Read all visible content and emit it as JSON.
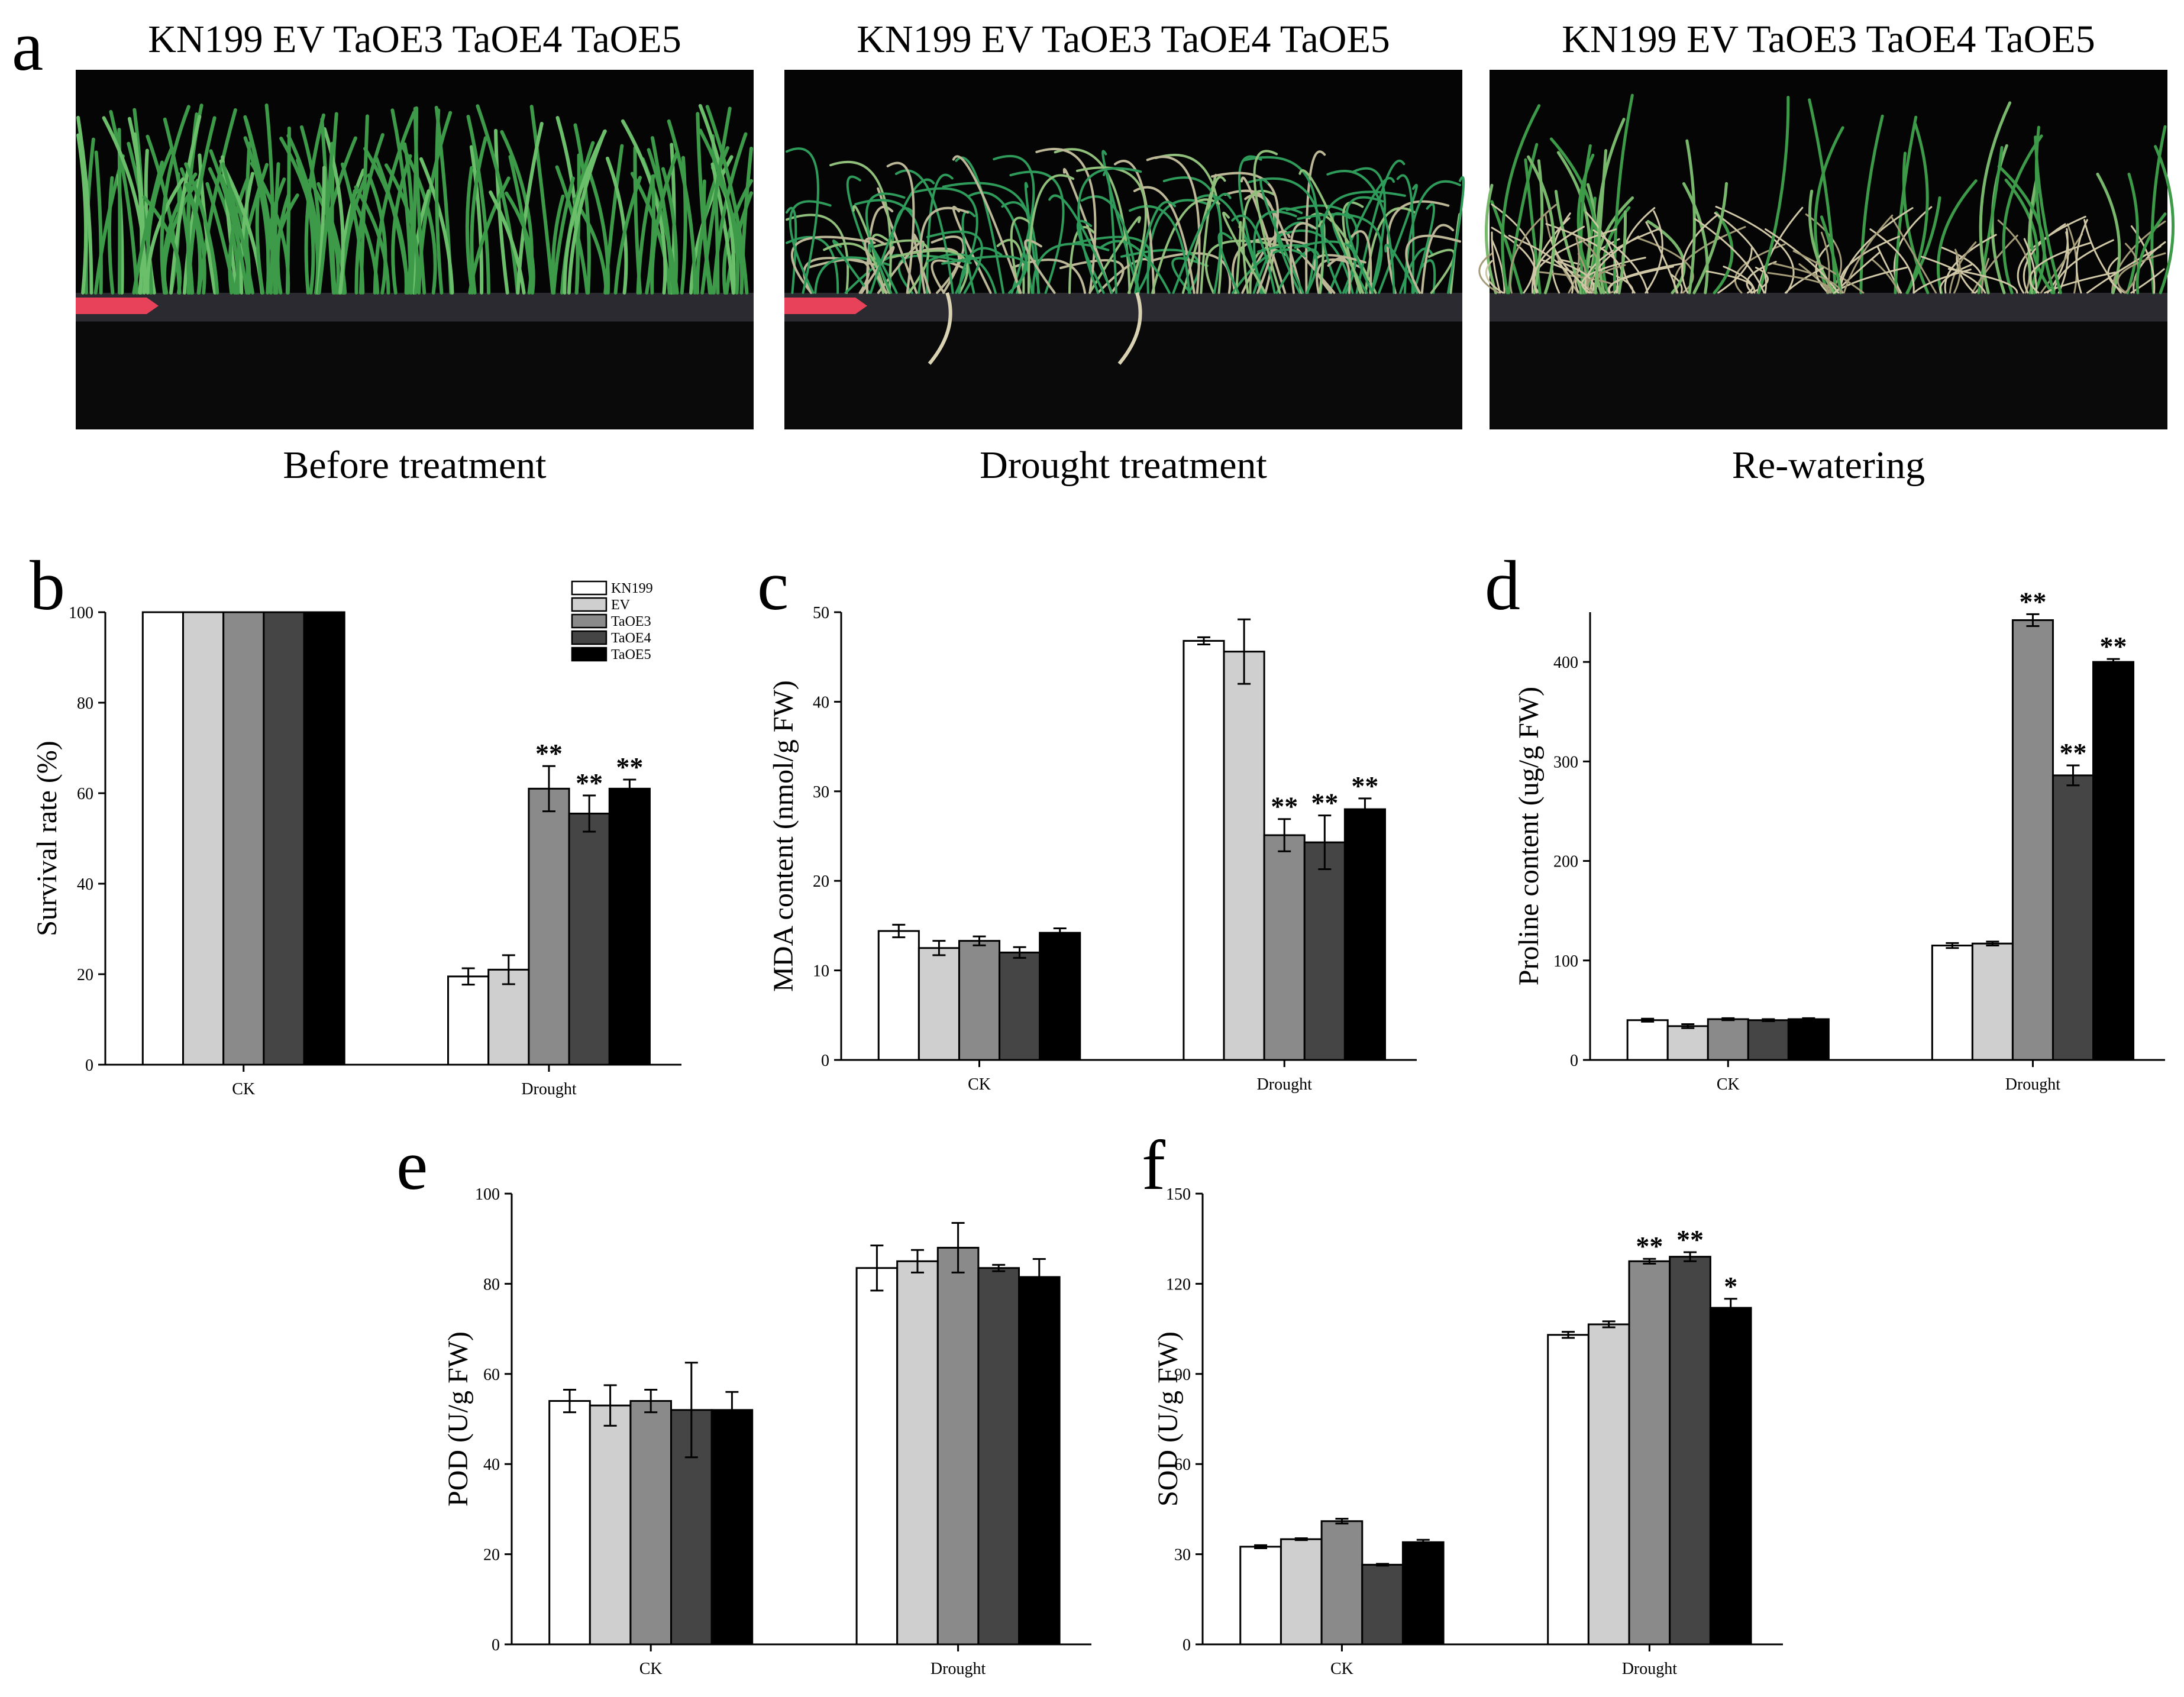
{
  "panel_a": {
    "letter": "a",
    "photos": [
      {
        "header": "KN199 EV TaOE3 TaOE4 TaOE5",
        "caption": "Before treatment",
        "stage": "before"
      },
      {
        "header": "KN199 EV TaOE3 TaOE4 TaOE5",
        "caption": "Drought treatment",
        "stage": "drought"
      },
      {
        "header": "KN199 EV TaOE3 TaOE4 TaOE5",
        "caption": "Re-watering",
        "stage": "rewater"
      }
    ]
  },
  "legend": {
    "entries": [
      "KN199",
      "EV",
      "TaOE3",
      "TaOE4",
      "TaOE5"
    ],
    "colors": [
      "#ffffff",
      "#cfcfcf",
      "#8a8a8a",
      "#454545",
      "#000000"
    ]
  },
  "chart_data": [
    {
      "id": "b",
      "letter": "b",
      "type": "bar",
      "ylabel": "Survival rate (%)",
      "xlabel": "",
      "categories": [
        "CK",
        "Drought"
      ],
      "ylim": [
        0,
        100
      ],
      "yticks": [
        0,
        20,
        40,
        60,
        80,
        100
      ],
      "series": [
        {
          "name": "KN199",
          "values": [
            100,
            19.5
          ],
          "errors": [
            0,
            1.8
          ]
        },
        {
          "name": "EV",
          "values": [
            100,
            21
          ],
          "errors": [
            0,
            3.2
          ]
        },
        {
          "name": "TaOE3",
          "values": [
            100,
            61
          ],
          "errors": [
            0,
            5
          ]
        },
        {
          "name": "TaOE4",
          "values": [
            100,
            55.5
          ],
          "errors": [
            0,
            4
          ]
        },
        {
          "name": "TaOE5",
          "values": [
            100,
            61
          ],
          "errors": [
            0,
            2
          ]
        }
      ],
      "significance": [
        {
          "category": "Drought",
          "series": "TaOE3",
          "mark": "**"
        },
        {
          "category": "Drought",
          "series": "TaOE4",
          "mark": "**"
        },
        {
          "category": "Drought",
          "series": "TaOE5",
          "mark": "**"
        }
      ],
      "legend_position": "top-right",
      "grid": false
    },
    {
      "id": "c",
      "letter": "c",
      "type": "bar",
      "ylabel": "MDA content (nmol/g FW)",
      "xlabel": "",
      "categories": [
        "CK",
        "Drought"
      ],
      "ylim": [
        0,
        50
      ],
      "yticks": [
        0,
        10,
        20,
        30,
        40,
        50
      ],
      "series": [
        {
          "name": "KN199",
          "values": [
            14.4,
            46.8
          ],
          "errors": [
            0.7,
            0.4
          ]
        },
        {
          "name": "EV",
          "values": [
            12.5,
            45.6
          ],
          "errors": [
            0.8,
            3.6
          ]
        },
        {
          "name": "TaOE3",
          "values": [
            13.3,
            25.1
          ],
          "errors": [
            0.5,
            1.8
          ]
        },
        {
          "name": "TaOE4",
          "values": [
            12.0,
            24.3
          ],
          "errors": [
            0.6,
            3.0
          ]
        },
        {
          "name": "TaOE5",
          "values": [
            14.2,
            28.0
          ],
          "errors": [
            0.5,
            1.2
          ]
        }
      ],
      "significance": [
        {
          "category": "Drought",
          "series": "TaOE3",
          "mark": "**"
        },
        {
          "category": "Drought",
          "series": "TaOE4",
          "mark": "**"
        },
        {
          "category": "Drought",
          "series": "TaOE5",
          "mark": "**"
        }
      ],
      "grid": false
    },
    {
      "id": "d",
      "letter": "d",
      "type": "bar",
      "ylabel": "Proline content (ug/g FW)",
      "xlabel": "",
      "categories": [
        "CK",
        "Drought"
      ],
      "ylim": [
        0,
        450
      ],
      "yticks": [
        0,
        100,
        200,
        300,
        400
      ],
      "series": [
        {
          "name": "KN199",
          "values": [
            40,
            115
          ],
          "errors": [
            1.5,
            2.5
          ]
        },
        {
          "name": "EV",
          "values": [
            34,
            117
          ],
          "errors": [
            2,
            2
          ]
        },
        {
          "name": "TaOE3",
          "values": [
            41,
            442
          ],
          "errors": [
            1,
            6
          ]
        },
        {
          "name": "TaOE4",
          "values": [
            40,
            286
          ],
          "errors": [
            1,
            10
          ]
        },
        {
          "name": "TaOE5",
          "values": [
            41,
            400
          ],
          "errors": [
            1,
            3
          ]
        }
      ],
      "significance": [
        {
          "category": "Drought",
          "series": "TaOE3",
          "mark": "**"
        },
        {
          "category": "Drought",
          "series": "TaOE4",
          "mark": "**"
        },
        {
          "category": "Drought",
          "series": "TaOE5",
          "mark": "**"
        }
      ],
      "grid": false
    },
    {
      "id": "e",
      "letter": "e",
      "type": "bar",
      "ylabel": "POD (U/g FW)",
      "xlabel": "",
      "categories": [
        "CK",
        "Drought"
      ],
      "ylim": [
        0,
        100
      ],
      "yticks": [
        0,
        20,
        40,
        60,
        80,
        100
      ],
      "series": [
        {
          "name": "KN199",
          "values": [
            54,
            83.5
          ],
          "errors": [
            2.5,
            5
          ]
        },
        {
          "name": "EV",
          "values": [
            53,
            85
          ],
          "errors": [
            4.5,
            2.5
          ]
        },
        {
          "name": "TaOE3",
          "values": [
            54,
            88
          ],
          "errors": [
            2.5,
            5.5
          ]
        },
        {
          "name": "TaOE4",
          "values": [
            52,
            83.5
          ],
          "errors": [
            10.5,
            0.7
          ]
        },
        {
          "name": "TaOE5",
          "values": [
            52,
            81.5
          ],
          "errors": [
            4,
            4
          ]
        }
      ],
      "significance": [],
      "grid": false
    },
    {
      "id": "f",
      "letter": "f",
      "type": "bar",
      "ylabel": "SOD (U/g FW)",
      "xlabel": "",
      "categories": [
        "CK",
        "Drought"
      ],
      "ylim": [
        0,
        150
      ],
      "yticks": [
        0,
        30,
        60,
        90,
        120,
        150
      ],
      "series": [
        {
          "name": "KN199",
          "values": [
            32.5,
            103
          ],
          "errors": [
            0.5,
            1
          ]
        },
        {
          "name": "EV",
          "values": [
            35,
            106.5
          ],
          "errors": [
            0.3,
            1
          ]
        },
        {
          "name": "TaOE3",
          "values": [
            41,
            127.5
          ],
          "errors": [
            0.8,
            0.8
          ]
        },
        {
          "name": "TaOE4",
          "values": [
            26.5,
            129
          ],
          "errors": [
            0.3,
            1.5
          ]
        },
        {
          "name": "TaOE5",
          "values": [
            34,
            112
          ],
          "errors": [
            0.8,
            3
          ]
        }
      ],
      "significance": [
        {
          "category": "Drought",
          "series": "TaOE3",
          "mark": "**"
        },
        {
          "category": "Drought",
          "series": "TaOE4",
          "mark": "**"
        },
        {
          "category": "Drought",
          "series": "TaOE5",
          "mark": "*"
        }
      ],
      "grid": false
    }
  ]
}
